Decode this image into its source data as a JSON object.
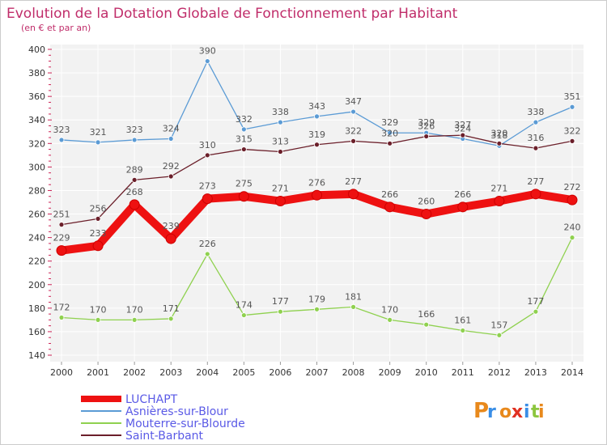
{
  "chart_data": {
    "type": "line",
    "title": "Evolution de la Dotation Globale de Fonctionnement par Habitant",
    "subtitle": "(en € et par an)",
    "xlabel": "",
    "ylabel": "",
    "categories": [
      "2000",
      "2001",
      "2002",
      "2003",
      "2004",
      "2005",
      "2006",
      "2007",
      "2008",
      "2009",
      "2010",
      "2011",
      "2012",
      "2013",
      "2014"
    ],
    "ylim": [
      140,
      400
    ],
    "yticks": [
      140,
      160,
      180,
      200,
      220,
      240,
      260,
      280,
      300,
      320,
      340,
      360,
      380,
      400
    ],
    "grid": true,
    "legend_position": "bottom-left",
    "series": [
      {
        "name": "LUCHAPT",
        "color": "#ee1111",
        "emphasis": true,
        "values": [
          229,
          233,
          268,
          239,
          273,
          275,
          271,
          276,
          277,
          266,
          260,
          266,
          271,
          277,
          272
        ]
      },
      {
        "name": "Asnières-sur-Blour",
        "color": "#5b9bd5",
        "emphasis": false,
        "values": [
          323,
          321,
          323,
          324,
          390,
          332,
          338,
          343,
          347,
          329,
          329,
          324,
          318,
          338,
          351
        ]
      },
      {
        "name": "Mouterre-sur-Blourde",
        "color": "#8fd14f",
        "emphasis": false,
        "values": [
          172,
          170,
          170,
          171,
          226,
          174,
          177,
          179,
          181,
          170,
          166,
          161,
          157,
          177,
          240
        ]
      },
      {
        "name": "Saint-Barbant",
        "color": "#6b1f2a",
        "emphasis": false,
        "values": [
          251,
          256,
          289,
          292,
          310,
          315,
          313,
          319,
          322,
          320,
          326,
          327,
          320,
          316,
          322
        ]
      }
    ]
  },
  "brand": {
    "letters": [
      "P",
      "r",
      "o",
      "x",
      "i",
      "t",
      "i"
    ]
  }
}
